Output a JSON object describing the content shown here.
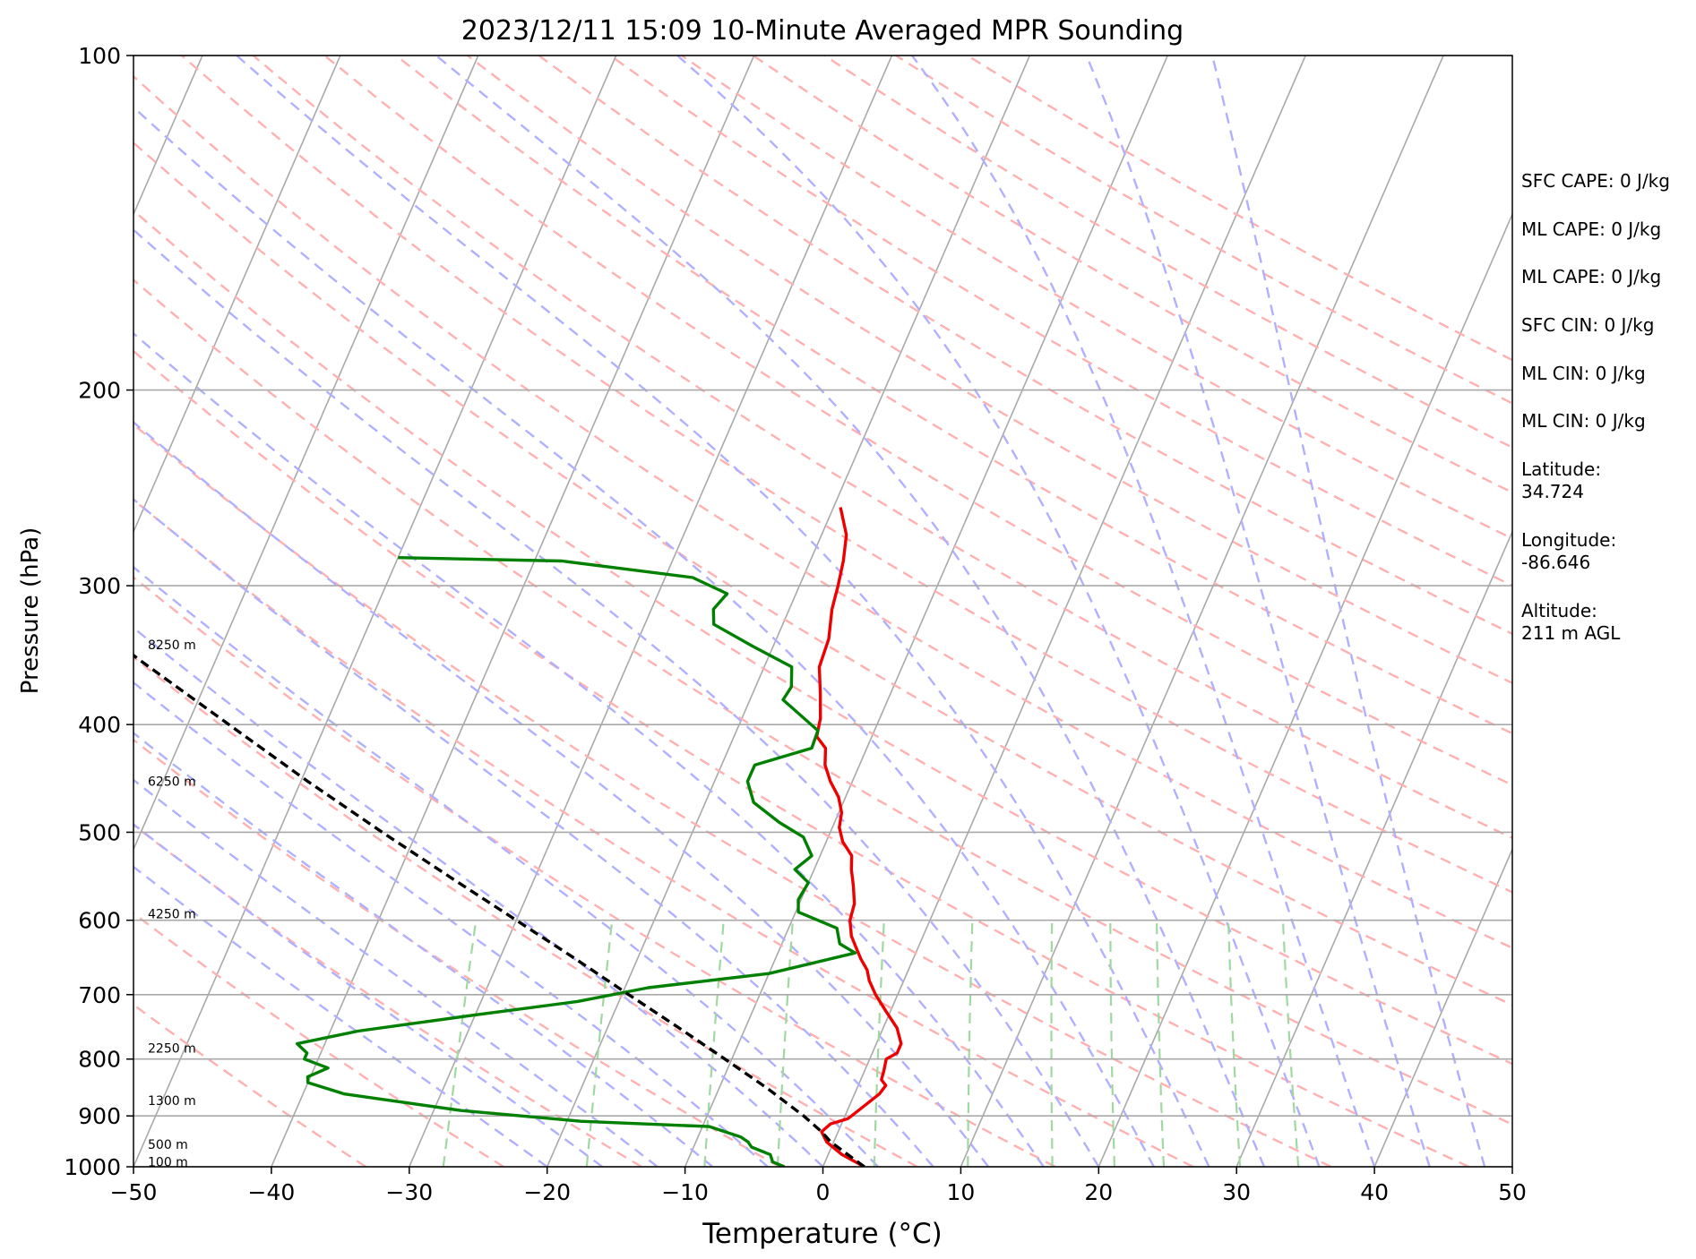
{
  "chart_data": {
    "type": "line",
    "subtype": "skew-T log-p sounding",
    "title": "2023/12/11 15:09 10-Minute Averaged MPR Sounding",
    "xlabel": "Temperature (°C)",
    "ylabel": "Pressure (hPa)",
    "xlim": [
      -50,
      50
    ],
    "ylim": [
      1000,
      100
    ],
    "y_scale": "log",
    "x_ticks": [
      "−50",
      "−40",
      "−30",
      "−20",
      "−10",
      "0",
      "10",
      "20",
      "30",
      "40",
      "50"
    ],
    "y_ticks": [
      "100",
      "200",
      "300",
      "400",
      "500",
      "600",
      "700",
      "800",
      "900",
      "1000"
    ],
    "height_labels": [
      {
        "p": 990,
        "text": "100 m"
      },
      {
        "p": 955,
        "text": "500 m"
      },
      {
        "p": 872,
        "text": "1300 m"
      },
      {
        "p": 782,
        "text": "2250 m"
      },
      {
        "p": 592,
        "text": "4250 m"
      },
      {
        "p": 450,
        "text": "6250 m"
      },
      {
        "p": 339,
        "text": "8250 m"
      }
    ],
    "series": [
      {
        "color": "#ee0000",
        "points": [
          {
            "p": 1000,
            "t": 3.0
          },
          {
            "p": 975,
            "t": 1.0
          },
          {
            "p": 950,
            "t": -0.5
          },
          {
            "p": 930,
            "t": -1.2
          },
          {
            "p": 915,
            "t": -0.8
          },
          {
            "p": 905,
            "t": 0.3
          },
          {
            "p": 890,
            "t": 0.8
          },
          {
            "p": 860,
            "t": 1.8
          },
          {
            "p": 845,
            "t": 2.0
          },
          {
            "p": 835,
            "t": 1.5
          },
          {
            "p": 820,
            "t": 1.4
          },
          {
            "p": 800,
            "t": 1.2
          },
          {
            "p": 790,
            "t": 1.8
          },
          {
            "p": 775,
            "t": 1.8
          },
          {
            "p": 750,
            "t": 1.0
          },
          {
            "p": 725,
            "t": -0.3
          },
          {
            "p": 700,
            "t": -1.6
          },
          {
            "p": 680,
            "t": -2.5
          },
          {
            "p": 665,
            "t": -3.0
          },
          {
            "p": 650,
            "t": -3.8
          },
          {
            "p": 635,
            "t": -4.5
          },
          {
            "p": 620,
            "t": -5.2
          },
          {
            "p": 600,
            "t": -5.8
          },
          {
            "p": 580,
            "t": -6.0
          },
          {
            "p": 560,
            "t": -6.6
          },
          {
            "p": 540,
            "t": -7.3
          },
          {
            "p": 525,
            "t": -7.7
          },
          {
            "p": 510,
            "t": -8.8
          },
          {
            "p": 495,
            "t": -9.5
          },
          {
            "p": 480,
            "t": -9.8
          },
          {
            "p": 465,
            "t": -10.5
          },
          {
            "p": 450,
            "t": -11.6
          },
          {
            "p": 435,
            "t": -12.5
          },
          {
            "p": 420,
            "t": -13.0
          },
          {
            "p": 410,
            "t": -14.0
          },
          {
            "p": 395,
            "t": -14.3
          },
          {
            "p": 375,
            "t": -15.1
          },
          {
            "p": 355,
            "t": -16.0
          },
          {
            "p": 335,
            "t": -16.2
          },
          {
            "p": 315,
            "t": -16.9
          },
          {
            "p": 300,
            "t": -17.2
          },
          {
            "p": 285,
            "t": -17.6
          },
          {
            "p": 270,
            "t": -18.2
          },
          {
            "p": 255,
            "t": -19.5
          }
        ]
      },
      {
        "color": "#008000",
        "points": [
          {
            "p": 1000,
            "t": -2.8
          },
          {
            "p": 990,
            "t": -3.8
          },
          {
            "p": 975,
            "t": -4.2
          },
          {
            "p": 960,
            "t": -5.8
          },
          {
            "p": 950,
            "t": -6.2
          },
          {
            "p": 940,
            "t": -6.9
          },
          {
            "p": 920,
            "t": -9.5
          },
          {
            "p": 910,
            "t": -19.0
          },
          {
            "p": 890,
            "t": -28.0
          },
          {
            "p": 860,
            "t": -37.0
          },
          {
            "p": 840,
            "t": -40.0
          },
          {
            "p": 830,
            "t": -40.2
          },
          {
            "p": 815,
            "t": -39.0
          },
          {
            "p": 800,
            "t": -41.0
          },
          {
            "p": 790,
            "t": -41.0
          },
          {
            "p": 775,
            "t": -42.0
          },
          {
            "p": 755,
            "t": -38.0
          },
          {
            "p": 730,
            "t": -30.0
          },
          {
            "p": 710,
            "t": -23.0
          },
          {
            "p": 690,
            "t": -18.3
          },
          {
            "p": 670,
            "t": -10.0
          },
          {
            "p": 642,
            "t": -4.4
          },
          {
            "p": 630,
            "t": -5.8
          },
          {
            "p": 610,
            "t": -6.5
          },
          {
            "p": 590,
            "t": -9.8
          },
          {
            "p": 575,
            "t": -10.2
          },
          {
            "p": 555,
            "t": -10.0
          },
          {
            "p": 540,
            "t": -11.4
          },
          {
            "p": 525,
            "t": -10.6
          },
          {
            "p": 505,
            "t": -11.8
          },
          {
            "p": 490,
            "t": -14.0
          },
          {
            "p": 470,
            "t": -16.5
          },
          {
            "p": 450,
            "t": -17.6
          },
          {
            "p": 435,
            "t": -17.6
          },
          {
            "p": 420,
            "t": -14.0
          },
          {
            "p": 405,
            "t": -14.1
          },
          {
            "p": 380,
            "t": -17.6
          },
          {
            "p": 370,
            "t": -17.4
          },
          {
            "p": 355,
            "t": -18.0
          },
          {
            "p": 340,
            "t": -21.5
          },
          {
            "p": 325,
            "t": -25.0
          },
          {
            "p": 315,
            "t": -25.5
          },
          {
            "p": 305,
            "t": -25.0
          },
          {
            "p": 295,
            "t": -28.0
          },
          {
            "p": 285,
            "t": -38.0
          },
          {
            "p": 283,
            "t": -50.0
          }
        ]
      },
      {
        "color": "#000000",
        "style": "dashed",
        "points": [
          {
            "p": 1000,
            "t": 3.0
          },
          {
            "p": 950,
            "t": -0.2
          },
          {
            "p": 930,
            "t": -1.2
          },
          {
            "p": 900,
            "t": -3.0
          },
          {
            "p": 850,
            "t": -6.5
          },
          {
            "p": 800,
            "t": -10.5
          },
          {
            "p": 750,
            "t": -14.8
          },
          {
            "p": 700,
            "t": -19.5
          },
          {
            "p": 650,
            "t": -24.5
          },
          {
            "p": 600,
            "t": -30.0
          },
          {
            "p": 550,
            "t": -36.0
          },
          {
            "p": 500,
            "t": -42.5
          },
          {
            "p": 450,
            "t": -49.5
          },
          {
            "p": 400,
            "t": -57.0
          },
          {
            "p": 350,
            "t": -65.5
          },
          {
            "p": 300,
            "t": -75.0
          },
          {
            "p": 272,
            "t": -81.0
          }
        ]
      }
    ],
    "background_lines": {
      "isotherm_color": "#a9a9a9",
      "dry_adiabat_color": "#ffb0b0",
      "moist_adiabat_color": "#b0b0ff",
      "mixing_ratio_color": "#a0d8a0"
    }
  },
  "indices": [
    {
      "text": "SFC CAPE: 0 J/kg"
    },
    {
      "text": "ML CAPE: 0 J/kg"
    },
    {
      "text": "ML CAPE: 0 J/kg"
    },
    {
      "text": "SFC CIN: 0 J/kg"
    },
    {
      "text": "ML CIN: 0 J/kg"
    },
    {
      "text": "ML CIN: 0 J/kg"
    },
    {
      "text": "Latitude:\n34.724"
    },
    {
      "text": "Longitude:\n-86.646"
    },
    {
      "text": "Altitude:\n211 m AGL"
    }
  ]
}
